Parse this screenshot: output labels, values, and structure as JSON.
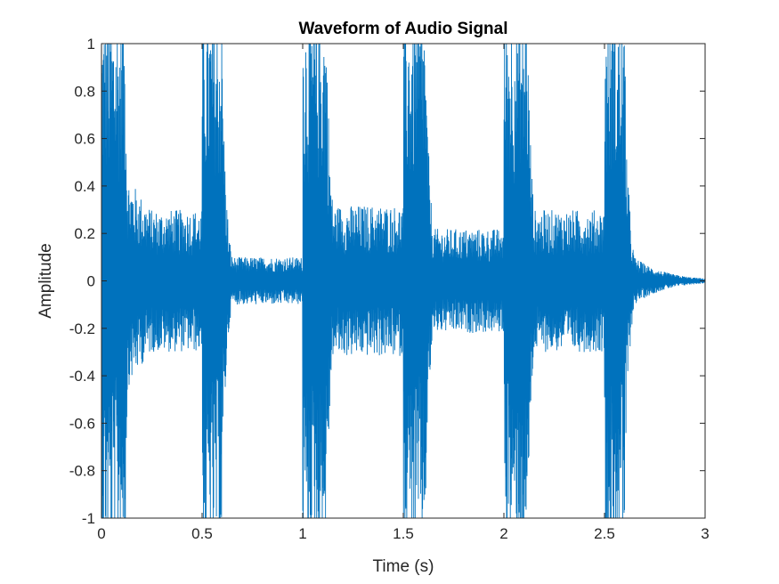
{
  "chart_data": {
    "type": "line",
    "title": "Waveform of Audio Signal",
    "xlabel": "Time (s)",
    "ylabel": "Amplitude",
    "xlim": [
      0,
      3
    ],
    "ylim": [
      -1,
      1
    ],
    "x_ticks": [
      0,
      0.5,
      1,
      1.5,
      2,
      2.5,
      3
    ],
    "x_tick_labels": [
      "0",
      "0.5",
      "1",
      "1.5",
      "2",
      "2.5",
      "3"
    ],
    "y_ticks": [
      -1,
      -0.8,
      -0.6,
      -0.4,
      -0.2,
      0,
      0.2,
      0.4,
      0.6,
      0.8,
      1
    ],
    "y_tick_labels": [
      "-1",
      "-0.8",
      "-0.6",
      "-0.4",
      "-0.2",
      "0",
      "0.2",
      "0.4",
      "0.6",
      "0.8",
      "1"
    ],
    "grid": false,
    "box": true,
    "series": [
      {
        "color": "#0072BD",
        "description_points": [
          {
            "t": 0.0,
            "amp": 1.0
          },
          {
            "t": 0.12,
            "amp": 1.0
          },
          {
            "t": 0.13,
            "amp": 0.45
          },
          {
            "t": 0.25,
            "amp": 0.3
          },
          {
            "t": 0.5,
            "amp": 1.0
          },
          {
            "t": 0.6,
            "amp": 1.0
          },
          {
            "t": 0.65,
            "amp": 0.1
          },
          {
            "t": 1.0,
            "amp": 1.0
          },
          {
            "t": 1.12,
            "amp": 1.0
          },
          {
            "t": 1.15,
            "amp": 0.32
          },
          {
            "t": 1.5,
            "amp": 1.0
          },
          {
            "t": 1.61,
            "amp": 1.0
          },
          {
            "t": 1.65,
            "amp": 0.22
          },
          {
            "t": 2.0,
            "amp": 1.0
          },
          {
            "t": 2.12,
            "amp": 1.0
          },
          {
            "t": 2.15,
            "amp": 0.3
          },
          {
            "t": 2.5,
            "amp": 1.0
          },
          {
            "t": 2.6,
            "amp": 1.0
          },
          {
            "t": 2.65,
            "amp": 0.1
          },
          {
            "t": 3.0,
            "amp": 0.01
          }
        ]
      }
    ]
  }
}
